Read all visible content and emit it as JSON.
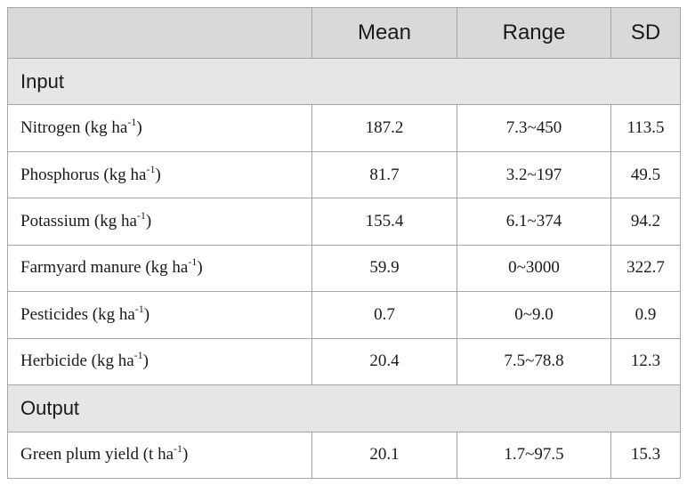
{
  "header": {
    "blank": "",
    "mean": "Mean",
    "range": "Range",
    "sd": "SD"
  },
  "sections": [
    {
      "title": "Input",
      "rows": [
        {
          "name": "Nitrogen (kg ha",
          "sup": "-1",
          "close": ")",
          "mean": "187.2",
          "range": "7.3~450",
          "sd": "113.5"
        },
        {
          "name": "Phosphorus (kg ha",
          "sup": "-1",
          "close": ")",
          "mean": "81.7",
          "range": "3.2~197",
          "sd": "49.5"
        },
        {
          "name": "Potassium (kg ha",
          "sup": "-1",
          "close": ")",
          "mean": "155.4",
          "range": "6.1~374",
          "sd": "94.2"
        },
        {
          "name": "Farmyard manure (kg ha",
          "sup": "-1",
          "close": ")",
          "mean": "59.9",
          "range": "0~3000",
          "sd": "322.7"
        },
        {
          "name": "Pesticides (kg ha",
          "sup": "-1",
          "close": ")",
          "mean": "0.7",
          "range": "0~9.0",
          "sd": "0.9"
        },
        {
          "name": "Herbicide (kg ha",
          "sup": "-1",
          "close": ")",
          "mean": "20.4",
          "range": "7.5~78.8",
          "sd": "12.3"
        }
      ]
    },
    {
      "title": "Output",
      "rows": [
        {
          "name": "Green plum yield (t ha",
          "sup": "-1",
          "close": ")",
          "mean": "20.1",
          "range": "1.7~97.5",
          "sd": "15.3"
        }
      ]
    }
  ]
}
